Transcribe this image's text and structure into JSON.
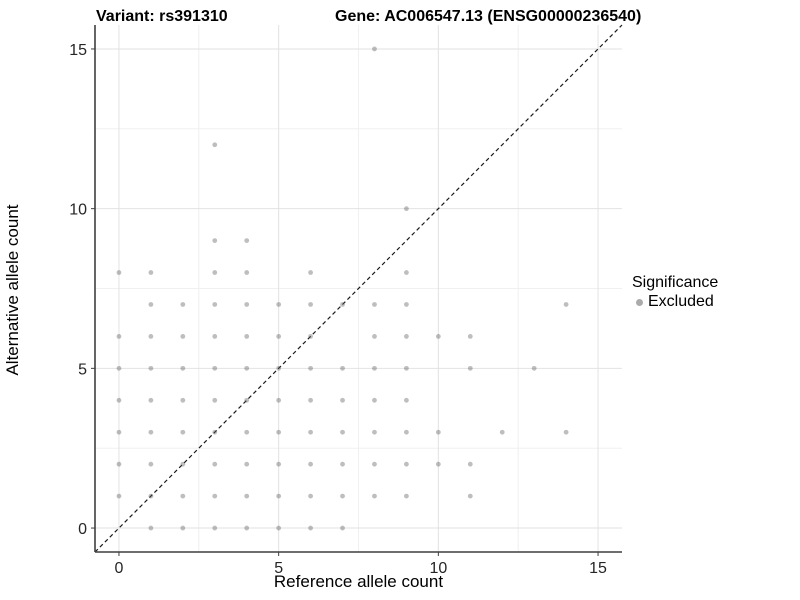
{
  "header": {
    "variant_title": "Variant: rs391310",
    "gene_title": "Gene: AC006547.13 (ENSG00000236540)"
  },
  "legend": {
    "title": "Significance",
    "entries": [
      {
        "label": "Excluded",
        "color": "#ababab"
      }
    ]
  },
  "chart_data": {
    "type": "scatter",
    "title": "Variant: rs391310  /  Gene: AC006547.13 (ENSG00000236540)",
    "xlabel": "Reference allele count",
    "ylabel": "Alternative allele count",
    "xlim": [
      -0.75,
      15.75
    ],
    "ylim": [
      -0.75,
      15.75
    ],
    "xticks": [
      0,
      5,
      10,
      15
    ],
    "yticks": [
      0,
      5,
      10,
      15
    ],
    "minor_ticks": [
      2.5,
      7.5,
      12.5
    ],
    "grid": true,
    "legend_position": "right",
    "identity_line": {
      "style": "dashed",
      "slope": 1,
      "intercept": 0,
      "color": "#1a1a1a"
    },
    "point_color": "#555555",
    "point_opacity": 0.38,
    "colors": {
      "major_grid": "#e2e2e2",
      "minor_grid": "#f0f0f0",
      "axis_line": "#3f3f3f",
      "tick_label": "#262626"
    },
    "series": [
      {
        "name": "Excluded",
        "points": [
          [
            1,
            0
          ],
          [
            2,
            0
          ],
          [
            3,
            0
          ],
          [
            4,
            0
          ],
          [
            5,
            0
          ],
          [
            6,
            0
          ],
          [
            7,
            0
          ],
          [
            0,
            1
          ],
          [
            1,
            1
          ],
          [
            2,
            1
          ],
          [
            3,
            1
          ],
          [
            4,
            1
          ],
          [
            5,
            1
          ],
          [
            6,
            1
          ],
          [
            7,
            1
          ],
          [
            8,
            1
          ],
          [
            9,
            1
          ],
          [
            11,
            1
          ],
          [
            0,
            2
          ],
          [
            1,
            2
          ],
          [
            2,
            2
          ],
          [
            3,
            2
          ],
          [
            4,
            2
          ],
          [
            5,
            2
          ],
          [
            6,
            2
          ],
          [
            7,
            2
          ],
          [
            8,
            2
          ],
          [
            9,
            2
          ],
          [
            10,
            2
          ],
          [
            11,
            2
          ],
          [
            0,
            3
          ],
          [
            1,
            3
          ],
          [
            2,
            3
          ],
          [
            3,
            3
          ],
          [
            4,
            3
          ],
          [
            5,
            3
          ],
          [
            6,
            3
          ],
          [
            7,
            3
          ],
          [
            8,
            3
          ],
          [
            9,
            3
          ],
          [
            10,
            3
          ],
          [
            12,
            3
          ],
          [
            14,
            3
          ],
          [
            0,
            4
          ],
          [
            1,
            4
          ],
          [
            2,
            4
          ],
          [
            3,
            4
          ],
          [
            4,
            4
          ],
          [
            5,
            4
          ],
          [
            6,
            4
          ],
          [
            7,
            4
          ],
          [
            8,
            4
          ],
          [
            9,
            4
          ],
          [
            0,
            5
          ],
          [
            1,
            5
          ],
          [
            2,
            5
          ],
          [
            3,
            5
          ],
          [
            4,
            5
          ],
          [
            5,
            5
          ],
          [
            6,
            5
          ],
          [
            7,
            5
          ],
          [
            8,
            5
          ],
          [
            9,
            5
          ],
          [
            11,
            5
          ],
          [
            13,
            5
          ],
          [
            0,
            6
          ],
          [
            1,
            6
          ],
          [
            2,
            6
          ],
          [
            3,
            6
          ],
          [
            4,
            6
          ],
          [
            5,
            6
          ],
          [
            6,
            6
          ],
          [
            8,
            6
          ],
          [
            9,
            6
          ],
          [
            10,
            6
          ],
          [
            11,
            6
          ],
          [
            1,
            7
          ],
          [
            2,
            7
          ],
          [
            3,
            7
          ],
          [
            4,
            7
          ],
          [
            5,
            7
          ],
          [
            6,
            7
          ],
          [
            7,
            7
          ],
          [
            8,
            7
          ],
          [
            9,
            7
          ],
          [
            14,
            7
          ],
          [
            0,
            8
          ],
          [
            1,
            8
          ],
          [
            3,
            8
          ],
          [
            4,
            8
          ],
          [
            6,
            8
          ],
          [
            9,
            8
          ],
          [
            3,
            9
          ],
          [
            4,
            9
          ],
          [
            9,
            10
          ],
          [
            3,
            12
          ],
          [
            8,
            15
          ]
        ]
      }
    ]
  }
}
